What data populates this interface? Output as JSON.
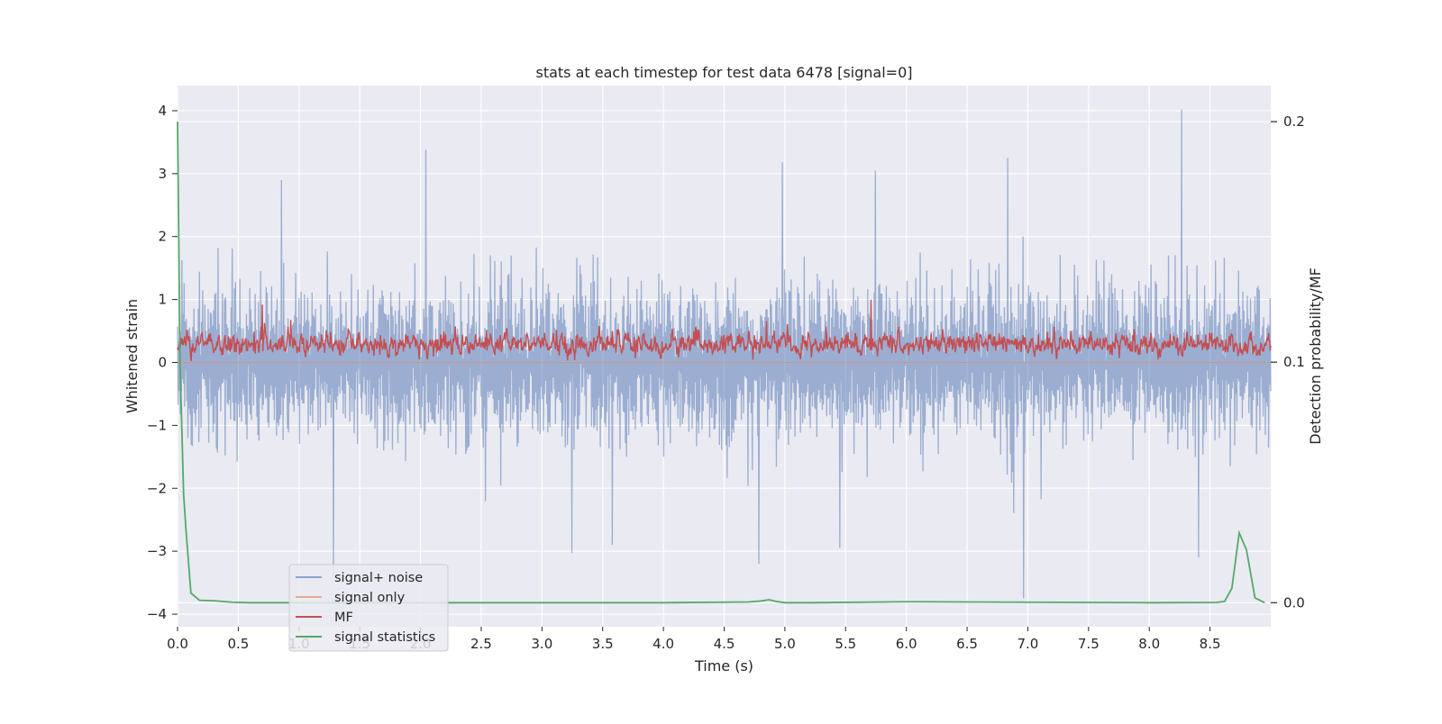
{
  "chart_data": {
    "type": "line",
    "title": "stats at each timestep for test data 6478 [signal=0]",
    "xlabel": "Time (s)",
    "ylabel": "Whitened strain",
    "y2label": "Detection probability/MF",
    "xlim": [
      0.0,
      9.0
    ],
    "ylim": [
      -4.2,
      4.4
    ],
    "y2lim": [
      -0.01,
      0.215
    ],
    "grid": true,
    "legend_position": "lower-left",
    "xticks": [
      0.0,
      0.5,
      1.0,
      1.5,
      2.0,
      2.5,
      3.0,
      3.5,
      4.0,
      4.5,
      5.0,
      5.5,
      6.0,
      6.5,
      7.0,
      7.5,
      8.0,
      8.5
    ],
    "xtick_labels": [
      "0.0",
      "0.5",
      "1.0",
      "1.5",
      "2.0",
      "2.5",
      "3.0",
      "3.5",
      "4.0",
      "4.5",
      "5.0",
      "5.5",
      "6.0",
      "6.5",
      "7.0",
      "7.5",
      "8.0",
      "8.5"
    ],
    "yticks": [
      -4,
      -3,
      -2,
      -1,
      0,
      1,
      2,
      3,
      4
    ],
    "ytick_labels": [
      "−4",
      "−3",
      "−2",
      "−1",
      "0",
      "1",
      "2",
      "3",
      "4"
    ],
    "y2ticks": [
      0.0,
      0.1,
      0.2
    ],
    "y2tick_labels": [
      "0.0",
      "0.1",
      "0.2"
    ],
    "series": [
      {
        "name": "signal+ noise",
        "color": "#4c72b0",
        "axis": "left",
        "kind": "noise",
        "samples": 2000,
        "positive_range": [
          0.0,
          2.0
        ],
        "negative_range": [
          -2.0,
          0.0
        ],
        "peaks": [
          {
            "x": 8.26,
            "y": 4.02
          },
          {
            "x": 2.04,
            "y": 3.38
          },
          {
            "x": 6.96,
            "y": -3.75
          },
          {
            "x": 1.28,
            "y": -3.4
          },
          {
            "x": 6.83,
            "y": 3.25
          },
          {
            "x": 4.98,
            "y": 3.18
          },
          {
            "x": 5.74,
            "y": 3.05
          },
          {
            "x": 8.4,
            "y": -3.1
          },
          {
            "x": 3.24,
            "y": -3.03
          },
          {
            "x": 4.78,
            "y": -3.2
          },
          {
            "x": 0.85,
            "y": 2.9
          },
          {
            "x": 5.45,
            "y": -2.95
          },
          {
            "x": 3.58,
            "y": -2.9
          }
        ]
      },
      {
        "name": "signal only",
        "color": "#dd8452",
        "axis": "left",
        "x": [
          0.0,
          9.0
        ],
        "y": [
          0.0,
          0.0
        ]
      },
      {
        "name": "MF",
        "color": "#c44e52",
        "axis": "left",
        "kind": "mf",
        "samples": 2000,
        "range": [
          0.0,
          0.8
        ],
        "peaks": [
          {
            "x": 5.71,
            "y": 1.0
          },
          {
            "x": 0.7,
            "y": 0.92
          }
        ]
      },
      {
        "name": "signal statistics",
        "color": "#55a868",
        "axis": "right",
        "x": [
          0.0,
          0.02,
          0.05,
          0.07,
          0.11,
          0.18,
          0.3,
          0.45,
          0.6,
          1.0,
          2.0,
          3.0,
          4.0,
          4.7,
          4.8,
          4.87,
          4.93,
          5.0,
          5.2,
          6.0,
          7.0,
          8.0,
          8.55,
          8.62,
          8.68,
          8.74,
          8.8,
          8.87,
          8.95
        ],
        "y": [
          0.2,
          0.1,
          0.045,
          0.03,
          0.004,
          0.001,
          0.0008,
          0.0002,
          0.0,
          0.0,
          0.0,
          0.0,
          0.0,
          0.0003,
          0.0007,
          0.0012,
          0.0005,
          0.0,
          0.0,
          0.0004,
          0.0002,
          0.0,
          0.0001,
          0.0005,
          0.006,
          0.029,
          0.022,
          0.002,
          0.0
        ]
      }
    ]
  }
}
